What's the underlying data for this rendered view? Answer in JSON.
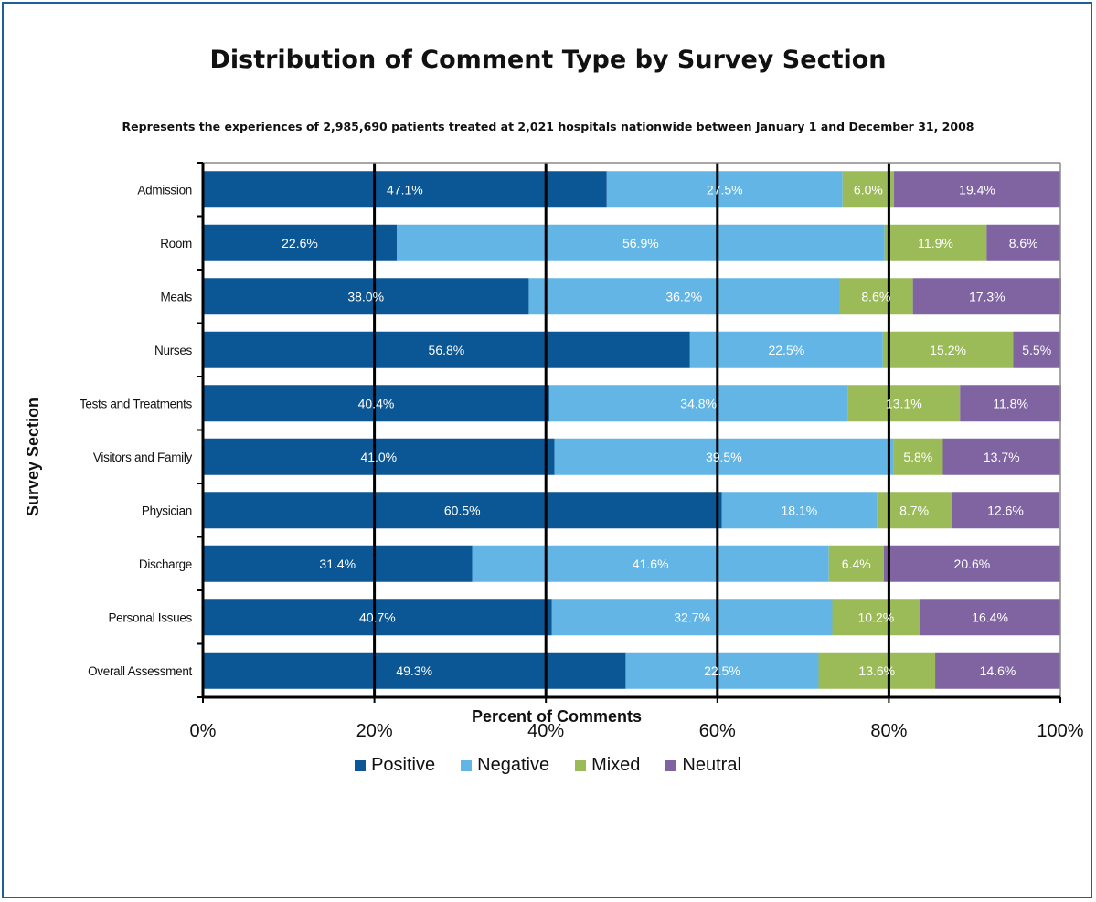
{
  "chart_data": {
    "type": "bar",
    "orientation": "horizontal",
    "stacked": "percent",
    "title": "Distribution of Comment Type by Survey Section",
    "subtitle": "Represents the experiences of 2,985,690 patients treated at 2,021 hospitals nationwide between January 1 and December 31, 2008",
    "xlabel": "Percent of Comments",
    "ylabel": "Survey Section",
    "xlim": [
      0,
      100
    ],
    "x_ticks": [
      "0%",
      "20%",
      "40%",
      "60%",
      "80%",
      "100%"
    ],
    "grid": "vertical",
    "legend_position": "bottom",
    "categories": [
      "Admission",
      "Room",
      "Meals",
      "Nurses",
      "Tests and Treatments",
      "Visitors and Family",
      "Physician",
      "Discharge",
      "Personal Issues",
      "Overall Assessment"
    ],
    "series": [
      {
        "name": "Positive",
        "color": "#0b5694",
        "values": [
          47.1,
          22.6,
          38.0,
          56.8,
          40.4,
          41.0,
          60.5,
          31.4,
          40.7,
          49.3
        ],
        "labels": [
          "47.1%",
          "22.6%",
          "38.0%",
          "56.8%",
          "40.4%",
          "41.0%",
          "60.5%",
          "31.4%",
          "40.7%",
          "49.3%"
        ]
      },
      {
        "name": "Negative",
        "color": "#62b5e5",
        "values": [
          27.5,
          56.9,
          36.2,
          22.5,
          34.8,
          39.5,
          18.1,
          41.6,
          32.7,
          22.5
        ],
        "labels": [
          "27.5%",
          "56.9%",
          "36.2%",
          "22.5%",
          "34.8%",
          "39.5%",
          "18.1%",
          "41.6%",
          "32.7%",
          "22.5%"
        ]
      },
      {
        "name": "Mixed",
        "color": "#9bbb59",
        "values": [
          6.0,
          11.9,
          8.6,
          15.2,
          13.1,
          5.8,
          8.7,
          6.4,
          10.2,
          13.6
        ],
        "labels": [
          "6.0%",
          "11.9%",
          "8.6%",
          "15.2%",
          "13.1%",
          "5.8%",
          "8.7%",
          "6.4%",
          "10.2%",
          "13.6%"
        ]
      },
      {
        "name": "Neutral",
        "color": "#8064a2",
        "values": [
          19.4,
          8.6,
          17.3,
          5.5,
          11.8,
          13.7,
          12.6,
          20.6,
          16.4,
          14.6
        ],
        "labels": [
          "19.4%",
          "8.6%",
          "17.3%",
          "5.5%",
          "11.8%",
          "13.7%",
          "12.6%",
          "20.6%",
          "16.4%",
          "14.6%"
        ]
      }
    ]
  }
}
